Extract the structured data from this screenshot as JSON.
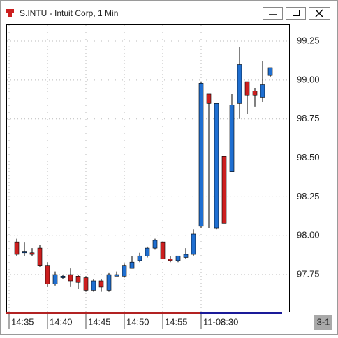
{
  "window": {
    "title": "S.INTU - Intuit Corp, 1 Min",
    "corner_label": "3-1"
  },
  "chart_data": {
    "type": "candlestick",
    "categories": [
      "14:35",
      null,
      null,
      null,
      null,
      "14:40",
      null,
      null,
      null,
      null,
      "14:45",
      null,
      null,
      null,
      null,
      "14:50",
      null,
      null,
      null,
      null,
      "14:55",
      null,
      null,
      null,
      null,
      "11-08:30",
      null,
      null,
      null,
      null,
      null,
      null,
      null,
      null
    ],
    "series": [
      {
        "up_color": "#1f6fd1",
        "down_color": "#cc1f1f",
        "open": [
          97.96,
          97.89,
          97.89,
          97.92,
          97.81,
          97.69,
          97.73,
          97.75,
          97.74,
          97.73,
          97.65,
          97.71,
          97.65,
          97.74,
          97.74,
          97.79,
          97.84,
          97.87,
          97.92,
          97.96,
          97.85,
          97.84,
          97.86,
          97.88,
          98.06,
          98.91,
          98.05,
          98.51,
          98.41,
          98.85,
          98.99,
          98.93,
          98.89,
          99.03
        ],
        "high": [
          97.98,
          97.96,
          97.92,
          97.94,
          97.83,
          97.77,
          97.75,
          97.79,
          97.75,
          97.74,
          97.72,
          97.72,
          97.76,
          97.77,
          97.82,
          97.87,
          97.89,
          97.93,
          97.98,
          97.96,
          97.87,
          97.87,
          97.92,
          98.04,
          98.99,
          98.91,
          98.85,
          98.51,
          98.91,
          99.21,
          98.99,
          98.95,
          99.12,
          99.08
        ],
        "low": [
          97.87,
          97.87,
          97.87,
          97.8,
          97.67,
          97.68,
          97.72,
          97.67,
          97.66,
          97.64,
          97.64,
          97.64,
          97.64,
          97.74,
          97.73,
          97.79,
          97.83,
          97.86,
          97.91,
          97.85,
          97.83,
          97.83,
          97.85,
          97.87,
          98.05,
          98.05,
          98.04,
          98.08,
          98.41,
          98.75,
          98.78,
          98.83,
          98.86,
          99.02
        ],
        "close": [
          97.88,
          97.9,
          97.88,
          97.81,
          97.69,
          97.75,
          97.74,
          97.71,
          97.7,
          97.65,
          97.71,
          97.67,
          97.75,
          97.75,
          97.81,
          97.83,
          97.87,
          97.92,
          97.97,
          97.85,
          97.84,
          97.87,
          97.88,
          98.01,
          98.98,
          98.85,
          98.85,
          98.08,
          98.84,
          99.1,
          98.9,
          98.9,
          98.97,
          99.08
        ]
      }
    ],
    "ylim": [
      97.513,
      99.353
    ],
    "yticks": [
      97.75,
      {
        "value": 98,
        "label": "98.00"
      },
      98.25,
      {
        "value": 98.5,
        "label": "98.50"
      },
      98.75,
      {
        "value": 99,
        "label": "99.00"
      },
      99.25
    ],
    "grid": true
  }
}
